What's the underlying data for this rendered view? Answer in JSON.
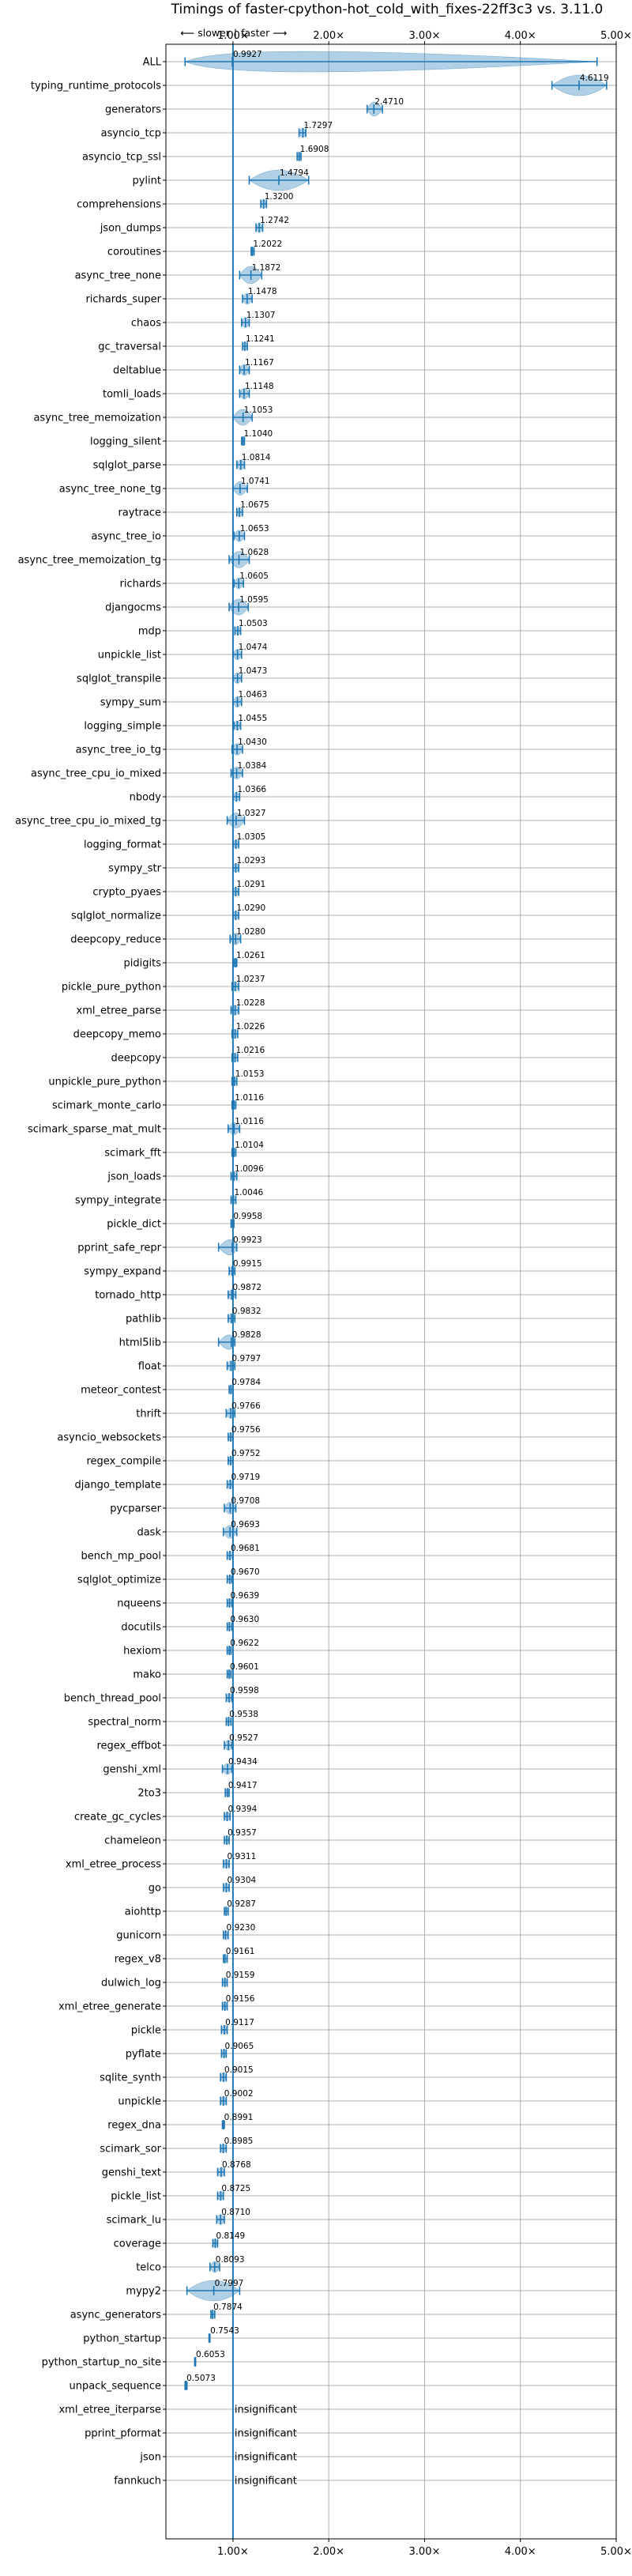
{
  "chart_data": {
    "type": "violin",
    "title": "Timings of faster-cpython-hot_cold_with_fixes-22ff3c3 vs. 3.11.0",
    "direction_labels": {
      "slower": "⟵ slower",
      "separator": "|",
      "faster": "faster ⟶"
    },
    "xlim": [
      0.3,
      5.0
    ],
    "xticks": [
      1,
      2,
      3,
      4,
      5
    ],
    "xtick_labels": [
      "1.00×",
      "2.00×",
      "3.00×",
      "4.00×",
      "5.00×"
    ],
    "reference_line": 1.0,
    "grid": true,
    "insignificant_text": "insignificant",
    "benchmarks": [
      {
        "name": "ALL",
        "value": 0.9927,
        "label": "0.9927",
        "min": 0.5,
        "max": 4.8
      },
      {
        "name": "typing_runtime_protocols",
        "value": 4.6119,
        "label": "4.6119",
        "min": 4.33,
        "max": 4.9
      },
      {
        "name": "generators",
        "value": 2.471,
        "label": "2.4710",
        "min": 2.4,
        "max": 2.56
      },
      {
        "name": "asyncio_tcp",
        "value": 1.7297,
        "label": "1.7297",
        "min": 1.69,
        "max": 1.76
      },
      {
        "name": "asyncio_tcp_ssl",
        "value": 1.6908,
        "label": "1.6908",
        "min": 1.67,
        "max": 1.71
      },
      {
        "name": "pylint",
        "value": 1.4794,
        "label": "1.4794",
        "min": 1.17,
        "max": 1.79
      },
      {
        "name": "comprehensions",
        "value": 1.32,
        "label": "1.3200",
        "min": 1.29,
        "max": 1.35
      },
      {
        "name": "json_dumps",
        "value": 1.2742,
        "label": "1.2742",
        "min": 1.24,
        "max": 1.31
      },
      {
        "name": "coroutines",
        "value": 1.2022,
        "label": "1.2022",
        "min": 1.19,
        "max": 1.22
      },
      {
        "name": "async_tree_none",
        "value": 1.1872,
        "label": "1.1872",
        "min": 1.07,
        "max": 1.3
      },
      {
        "name": "richards_super",
        "value": 1.1478,
        "label": "1.1478",
        "min": 1.1,
        "max": 1.2
      },
      {
        "name": "chaos",
        "value": 1.1307,
        "label": "1.1307",
        "min": 1.09,
        "max": 1.17
      },
      {
        "name": "gc_traversal",
        "value": 1.1241,
        "label": "1.1241",
        "min": 1.1,
        "max": 1.15
      },
      {
        "name": "deltablue",
        "value": 1.1167,
        "label": "1.1167",
        "min": 1.07,
        "max": 1.17
      },
      {
        "name": "tomli_loads",
        "value": 1.1148,
        "label": "1.1148",
        "min": 1.07,
        "max": 1.17
      },
      {
        "name": "async_tree_memoization",
        "value": 1.1053,
        "label": "1.1053",
        "min": 1.0,
        "max": 1.2
      },
      {
        "name": "logging_silent",
        "value": 1.104,
        "label": "1.1040",
        "min": 1.09,
        "max": 1.12
      },
      {
        "name": "sqlglot_parse",
        "value": 1.0814,
        "label": "1.0814",
        "min": 1.04,
        "max": 1.12
      },
      {
        "name": "async_tree_none_tg",
        "value": 1.0741,
        "label": "1.0741",
        "min": 1.0,
        "max": 1.15
      },
      {
        "name": "raytrace",
        "value": 1.0675,
        "label": "1.0675",
        "min": 1.04,
        "max": 1.1
      },
      {
        "name": "async_tree_io",
        "value": 1.0653,
        "label": "1.0653",
        "min": 1.01,
        "max": 1.12
      },
      {
        "name": "async_tree_memoization_tg",
        "value": 1.0628,
        "label": "1.0628",
        "min": 0.96,
        "max": 1.17
      },
      {
        "name": "richards",
        "value": 1.0605,
        "label": "1.0605",
        "min": 1.01,
        "max": 1.11
      },
      {
        "name": "djangocms",
        "value": 1.0595,
        "label": "1.0595",
        "min": 0.96,
        "max": 1.16
      },
      {
        "name": "mdp",
        "value": 1.0503,
        "label": "1.0503",
        "min": 1.02,
        "max": 1.08
      },
      {
        "name": "unpickle_list",
        "value": 1.0474,
        "label": "1.0474",
        "min": 1.0,
        "max": 1.09
      },
      {
        "name": "sqlglot_transpile",
        "value": 1.0473,
        "label": "1.0473",
        "min": 1.0,
        "max": 1.09
      },
      {
        "name": "sympy_sum",
        "value": 1.0463,
        "label": "1.0463",
        "min": 1.0,
        "max": 1.09
      },
      {
        "name": "logging_simple",
        "value": 1.0455,
        "label": "1.0455",
        "min": 1.01,
        "max": 1.08
      },
      {
        "name": "async_tree_io_tg",
        "value": 1.043,
        "label": "1.0430",
        "min": 0.99,
        "max": 1.1
      },
      {
        "name": "async_tree_cpu_io_mixed",
        "value": 1.0384,
        "label": "1.0384",
        "min": 0.98,
        "max": 1.1
      },
      {
        "name": "nbody",
        "value": 1.0366,
        "label": "1.0366",
        "min": 1.0,
        "max": 1.07
      },
      {
        "name": "async_tree_cpu_io_mixed_tg",
        "value": 1.0327,
        "label": "1.0327",
        "min": 0.94,
        "max": 1.12
      },
      {
        "name": "logging_format",
        "value": 1.0305,
        "label": "1.0305",
        "min": 1.0,
        "max": 1.06
      },
      {
        "name": "sympy_str",
        "value": 1.0293,
        "label": "1.0293",
        "min": 1.0,
        "max": 1.06
      },
      {
        "name": "crypto_pyaes",
        "value": 1.0291,
        "label": "1.0291",
        "min": 1.0,
        "max": 1.06
      },
      {
        "name": "sqlglot_normalize",
        "value": 1.029,
        "label": "1.0290",
        "min": 1.0,
        "max": 1.06
      },
      {
        "name": "deepcopy_reduce",
        "value": 1.028,
        "label": "1.0280",
        "min": 0.97,
        "max": 1.08
      },
      {
        "name": "pidigits",
        "value": 1.0261,
        "label": "1.0261",
        "min": 1.01,
        "max": 1.04
      },
      {
        "name": "pickle_pure_python",
        "value": 1.0237,
        "label": "1.0237",
        "min": 0.99,
        "max": 1.06
      },
      {
        "name": "xml_etree_parse",
        "value": 1.0228,
        "label": "1.0228",
        "min": 0.98,
        "max": 1.06
      },
      {
        "name": "deepcopy_memo",
        "value": 1.0226,
        "label": "1.0226",
        "min": 0.99,
        "max": 1.05
      },
      {
        "name": "deepcopy",
        "value": 1.0216,
        "label": "1.0216",
        "min": 0.99,
        "max": 1.05
      },
      {
        "name": "unpickle_pure_python",
        "value": 1.0153,
        "label": "1.0153",
        "min": 0.99,
        "max": 1.04
      },
      {
        "name": "scimark_monte_carlo",
        "value": 1.0116,
        "label": "1.0116",
        "min": 0.99,
        "max": 1.03
      },
      {
        "name": "scimark_sparse_mat_mult",
        "value": 1.0116,
        "label": "1.0116",
        "min": 0.95,
        "max": 1.07
      },
      {
        "name": "scimark_fft",
        "value": 1.0104,
        "label": "1.0104",
        "min": 0.99,
        "max": 1.03
      },
      {
        "name": "json_loads",
        "value": 1.0096,
        "label": "1.0096",
        "min": 0.98,
        "max": 1.04
      },
      {
        "name": "sympy_integrate",
        "value": 1.0046,
        "label": "1.0046",
        "min": 0.98,
        "max": 1.03
      },
      {
        "name": "pickle_dict",
        "value": 0.9958,
        "label": "0.9958",
        "min": 0.98,
        "max": 1.01
      },
      {
        "name": "pprint_safe_repr",
        "value": 0.9923,
        "label": "0.9923",
        "min": 0.85,
        "max": 1.04
      },
      {
        "name": "sympy_expand",
        "value": 0.9915,
        "label": "0.9915",
        "min": 0.96,
        "max": 1.02
      },
      {
        "name": "tornado_http",
        "value": 0.9872,
        "label": "0.9872",
        "min": 0.95,
        "max": 1.03
      },
      {
        "name": "pathlib",
        "value": 0.9832,
        "label": "0.9832",
        "min": 0.95,
        "max": 1.02
      },
      {
        "name": "html5lib",
        "value": 0.9828,
        "label": "0.9828",
        "min": 0.85,
        "max": 1.02
      },
      {
        "name": "float",
        "value": 0.9797,
        "label": "0.9797",
        "min": 0.94,
        "max": 1.02
      },
      {
        "name": "meteor_contest",
        "value": 0.9784,
        "label": "0.9784",
        "min": 0.96,
        "max": 1.0
      },
      {
        "name": "thrift",
        "value": 0.9766,
        "label": "0.9766",
        "min": 0.93,
        "max": 1.02
      },
      {
        "name": "asyncio_websockets",
        "value": 0.9756,
        "label": "0.9756",
        "min": 0.95,
        "max": 1.0
      },
      {
        "name": "regex_compile",
        "value": 0.9752,
        "label": "0.9752",
        "min": 0.95,
        "max": 1.0
      },
      {
        "name": "django_template",
        "value": 0.9719,
        "label": "0.9719",
        "min": 0.94,
        "max": 1.0
      },
      {
        "name": "pycparser",
        "value": 0.9708,
        "label": "0.9708",
        "min": 0.91,
        "max": 1.03
      },
      {
        "name": "dask",
        "value": 0.9693,
        "label": "0.9693",
        "min": 0.9,
        "max": 1.04
      },
      {
        "name": "bench_mp_pool",
        "value": 0.9681,
        "label": "0.9681",
        "min": 0.94,
        "max": 1.0
      },
      {
        "name": "sqlglot_optimize",
        "value": 0.967,
        "label": "0.9670",
        "min": 0.94,
        "max": 0.99
      },
      {
        "name": "nqueens",
        "value": 0.9639,
        "label": "0.9639",
        "min": 0.94,
        "max": 0.99
      },
      {
        "name": "docutils",
        "value": 0.963,
        "label": "0.9630",
        "min": 0.94,
        "max": 0.99
      },
      {
        "name": "hexiom",
        "value": 0.9622,
        "label": "0.9622",
        "min": 0.94,
        "max": 0.98
      },
      {
        "name": "mako",
        "value": 0.9601,
        "label": "0.9601",
        "min": 0.94,
        "max": 0.98
      },
      {
        "name": "bench_thread_pool",
        "value": 0.9598,
        "label": "0.9598",
        "min": 0.93,
        "max": 0.99
      },
      {
        "name": "spectral_norm",
        "value": 0.9538,
        "label": "0.9538",
        "min": 0.93,
        "max": 0.98
      },
      {
        "name": "regex_effbot",
        "value": 0.9527,
        "label": "0.9527",
        "min": 0.91,
        "max": 0.99
      },
      {
        "name": "genshi_xml",
        "value": 0.9434,
        "label": "0.9434",
        "min": 0.89,
        "max": 0.99
      },
      {
        "name": "2to3",
        "value": 0.9417,
        "label": "0.9417",
        "min": 0.92,
        "max": 0.96
      },
      {
        "name": "create_gc_cycles",
        "value": 0.9394,
        "label": "0.9394",
        "min": 0.91,
        "max": 0.97
      },
      {
        "name": "chameleon",
        "value": 0.9357,
        "label": "0.9357",
        "min": 0.91,
        "max": 0.96
      },
      {
        "name": "xml_etree_process",
        "value": 0.9311,
        "label": "0.9311",
        "min": 0.9,
        "max": 0.96
      },
      {
        "name": "go",
        "value": 0.9304,
        "label": "0.9304",
        "min": 0.9,
        "max": 0.96
      },
      {
        "name": "aiohttp",
        "value": 0.9287,
        "label": "0.9287",
        "min": 0.91,
        "max": 0.95
      },
      {
        "name": "gunicorn",
        "value": 0.923,
        "label": "0.9230",
        "min": 0.9,
        "max": 0.95
      },
      {
        "name": "regex_v8",
        "value": 0.9161,
        "label": "0.9161",
        "min": 0.9,
        "max": 0.94
      },
      {
        "name": "dulwich_log",
        "value": 0.9159,
        "label": "0.9159",
        "min": 0.89,
        "max": 0.94
      },
      {
        "name": "xml_etree_generate",
        "value": 0.9156,
        "label": "0.9156",
        "min": 0.89,
        "max": 0.94
      },
      {
        "name": "pickle",
        "value": 0.9117,
        "label": "0.9117",
        "min": 0.88,
        "max": 0.94
      },
      {
        "name": "pyflate",
        "value": 0.9065,
        "label": "0.9065",
        "min": 0.88,
        "max": 0.93
      },
      {
        "name": "sqlite_synth",
        "value": 0.9015,
        "label": "0.9015",
        "min": 0.87,
        "max": 0.93
      },
      {
        "name": "unpickle",
        "value": 0.9002,
        "label": "0.9002",
        "min": 0.87,
        "max": 0.93
      },
      {
        "name": "regex_dna",
        "value": 0.8991,
        "label": "0.8991",
        "min": 0.89,
        "max": 0.91
      },
      {
        "name": "scimark_sor",
        "value": 0.8985,
        "label": "0.8985",
        "min": 0.87,
        "max": 0.93
      },
      {
        "name": "genshi_text",
        "value": 0.8768,
        "label": "0.8768",
        "min": 0.84,
        "max": 0.91
      },
      {
        "name": "pickle_list",
        "value": 0.8725,
        "label": "0.8725",
        "min": 0.84,
        "max": 0.9
      },
      {
        "name": "scimark_lu",
        "value": 0.871,
        "label": "0.8710",
        "min": 0.83,
        "max": 0.91
      },
      {
        "name": "coverage",
        "value": 0.8149,
        "label": "0.8149",
        "min": 0.79,
        "max": 0.84
      },
      {
        "name": "telco",
        "value": 0.8093,
        "label": "0.8093",
        "min": 0.76,
        "max": 0.86
      },
      {
        "name": "mypy2",
        "value": 0.7997,
        "label": "0.7997",
        "min": 0.52,
        "max": 1.07
      },
      {
        "name": "async_generators",
        "value": 0.7874,
        "label": "0.7874",
        "min": 0.77,
        "max": 0.81
      },
      {
        "name": "python_startup",
        "value": 0.7543,
        "label": "0.7543",
        "min": 0.75,
        "max": 0.76
      },
      {
        "name": "python_startup_no_site",
        "value": 0.6053,
        "label": "0.6053",
        "min": 0.6,
        "max": 0.61
      },
      {
        "name": "unpack_sequence",
        "value": 0.5073,
        "label": "0.5073",
        "min": 0.5,
        "max": 0.52
      },
      {
        "name": "xml_etree_iterparse",
        "insignificant": true
      },
      {
        "name": "pprint_pformat",
        "insignificant": true
      },
      {
        "name": "json",
        "insignificant": true
      },
      {
        "name": "fannkuch",
        "insignificant": true
      }
    ]
  },
  "colors": {
    "violin": "#1f77b4",
    "reference_line": "#1f77b4",
    "grid": "#b0b0b0",
    "median": "#d62728",
    "axes": "#000000"
  }
}
